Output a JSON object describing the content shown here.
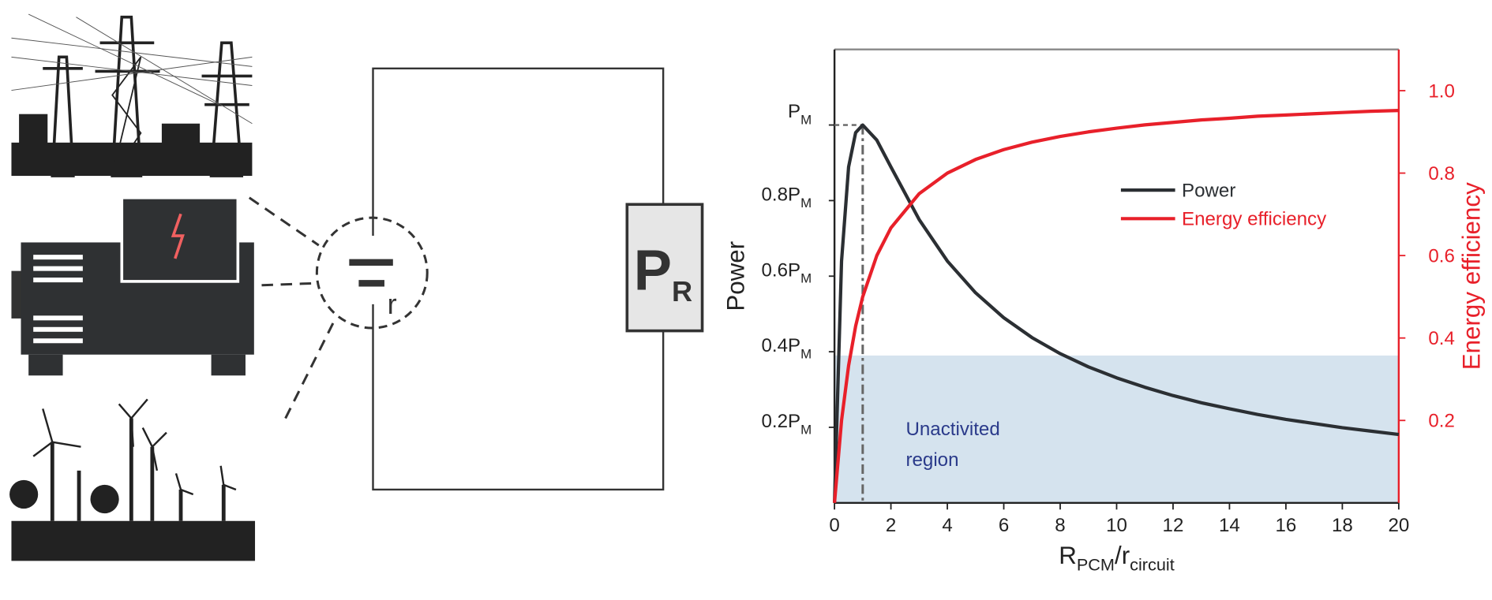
{
  "diagram": {
    "battery_label": "r",
    "load_label": "P",
    "load_subscript": "R"
  },
  "chart_data": {
    "type": "line",
    "x": [
      0,
      0.25,
      0.5,
      0.75,
      1,
      1.5,
      2,
      3,
      4,
      5,
      6,
      7,
      8,
      9,
      10,
      11,
      12,
      13,
      14,
      15,
      16,
      17,
      18,
      19,
      20
    ],
    "series": [
      {
        "name": "Power",
        "color": "#2b2f33",
        "values": [
          0,
          0.64,
          0.889,
          0.98,
          1,
          0.96,
          0.889,
          0.75,
          0.64,
          0.556,
          0.49,
          0.4375,
          0.395,
          0.36,
          0.331,
          0.306,
          0.284,
          0.265,
          0.249,
          0.234,
          0.221,
          0.21,
          0.199,
          0.19,
          0.181
        ]
      },
      {
        "name": "Energy efficiency",
        "color": "#e8202a",
        "axis": "y2",
        "values": [
          0,
          0.2,
          0.333,
          0.429,
          0.5,
          0.6,
          0.667,
          0.75,
          0.8,
          0.833,
          0.857,
          0.875,
          0.889,
          0.9,
          0.909,
          0.917,
          0.923,
          0.929,
          0.933,
          0.938,
          0.941,
          0.944,
          0.947,
          0.95,
          0.952
        ]
      }
    ],
    "xlim": [
      0,
      20
    ],
    "xticks": [
      0,
      2,
      4,
      6,
      8,
      10,
      12,
      14,
      16,
      18,
      20
    ],
    "ylim": [
      0,
      1.2
    ],
    "yticks": [
      {
        "value": 0.2,
        "label": "0.2P",
        "subscript": "M"
      },
      {
        "value": 0.4,
        "label": "0.4P",
        "subscript": "M"
      },
      {
        "value": 0.6,
        "label": "0.6P",
        "subscript": "M"
      },
      {
        "value": 0.8,
        "label": "0.8P",
        "subscript": "M"
      },
      {
        "value": 1,
        "label": "P",
        "subscript": "M"
      }
    ],
    "y2lim": [
      0,
      1.1
    ],
    "y2ticks": [
      0.2,
      0.4,
      0.6,
      0.8,
      {
        "value": 1,
        "label": "1.0"
      }
    ],
    "x_label": [
      "R",
      "PCM",
      "/r",
      "circuit"
    ],
    "y_label": "Power",
    "y2_label": "Energy efficiency",
    "reference": {
      "x": 1,
      "y": 1
    },
    "shaded_region": {
      "ylim": [
        0,
        0.39
      ],
      "color": "#d5e3ee",
      "label": [
        "Unactivited",
        "region"
      ],
      "label_color": "#2a3a8a"
    }
  }
}
